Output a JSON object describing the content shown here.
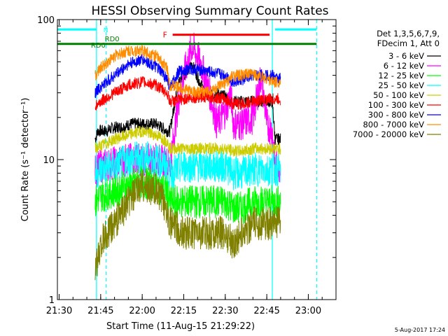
{
  "chart_data": {
    "type": "line",
    "title": "HESSI Observing Summary Count Rates",
    "xlabel": "Start Time (11-Aug-15 21:29:22)",
    "ylabel": "Count Rate (s⁻¹ detector⁻¹)",
    "y_scale": "log",
    "ylim": [
      1,
      100
    ],
    "xlim": [
      "21:29:22",
      "23:10:00"
    ],
    "x_tick_labels": [
      "21:30",
      "21:45",
      "22:00",
      "22:15",
      "22:30",
      "22:45",
      "23:00"
    ],
    "y_tick_labels": [
      "1",
      "10",
      "100"
    ],
    "legend_title": [
      "Det 1,3,5,6,7,9,",
      "FDecim 1, Att 0"
    ],
    "legend_position": "right",
    "footer_date": "5-Aug-2017 17:24",
    "series": [
      {
        "name": "3 - 6 keV",
        "color": "#000000",
        "x": [
          "21:43",
          "21:44",
          "21:47",
          "21:50",
          "21:53",
          "21:56",
          "22:00",
          "22:05",
          "22:09",
          "22:10",
          "22:13",
          "22:15",
          "22:18",
          "22:21",
          "22:24",
          "22:27",
          "22:30",
          "22:33",
          "22:36",
          "22:40",
          "22:45",
          "22:47",
          "22:48",
          "22:50"
        ],
        "values": [
          14,
          16,
          16,
          17,
          17,
          18,
          18,
          18,
          16,
          16,
          35,
          40,
          48,
          35,
          28,
          30,
          28,
          26,
          26,
          26,
          26,
          26,
          14,
          14
        ]
      },
      {
        "name": "6 - 12 keV",
        "color": "#ff00ff",
        "x": [
          "21:43",
          "21:45",
          "21:50",
          "21:55",
          "22:00",
          "22:05",
          "22:09",
          "22:10",
          "22:13",
          "22:15",
          "22:18",
          "22:21",
          "22:24",
          "22:27",
          "22:30",
          "22:32",
          "22:33",
          "22:36",
          "22:40",
          "22:43",
          "22:45",
          "22:47",
          "22:48",
          "22:50"
        ],
        "values": [
          8.5,
          9,
          9.5,
          10,
          10,
          10,
          9.5,
          9,
          25,
          40,
          65,
          50,
          32,
          18,
          22,
          30,
          18,
          18,
          20,
          40,
          18,
          16,
          9,
          9
        ]
      },
      {
        "name": "12 - 25 keV",
        "color": "#00ff00",
        "x": [
          "21:43",
          "21:45",
          "21:50",
          "21:55",
          "22:00",
          "22:05",
          "22:09",
          "22:10",
          "22:15",
          "22:20",
          "22:25",
          "22:30",
          "22:33",
          "22:36",
          "22:40",
          "22:45",
          "22:47",
          "22:48",
          "22:50"
        ],
        "values": [
          5,
          5.5,
          6,
          6.5,
          7,
          6.5,
          6,
          5,
          5,
          5,
          5,
          5,
          4.5,
          4.5,
          5,
          5,
          5,
          5,
          5
        ]
      },
      {
        "name": "25 - 50 keV",
        "color": "#00ffff",
        "x": [
          "21:43",
          "21:45",
          "21:50",
          "21:55",
          "22:00",
          "22:05",
          "22:09",
          "22:10",
          "22:15",
          "22:20",
          "22:25",
          "22:30",
          "22:33",
          "22:36",
          "22:40",
          "22:45",
          "22:47",
          "22:48",
          "22:50"
        ],
        "values": [
          8,
          8.5,
          9,
          10,
          10.5,
          10,
          9,
          8,
          9,
          9,
          9,
          9,
          8,
          8,
          8.5,
          8.5,
          8.5,
          8.5,
          8.5
        ]
      },
      {
        "name": "50 - 100 keV",
        "color": "#cccc00",
        "x": [
          "21:43",
          "21:45",
          "21:50",
          "21:55",
          "22:00",
          "22:05",
          "22:09",
          "22:10",
          "22:15",
          "22:20",
          "22:25",
          "22:30",
          "22:33",
          "22:36",
          "22:40",
          "22:45",
          "22:47",
          "22:48",
          "22:50"
        ],
        "values": [
          12,
          12.5,
          14,
          15,
          16,
          15,
          13.5,
          12,
          12,
          12,
          12,
          12,
          11.5,
          11.5,
          12,
          12,
          12,
          12,
          12
        ]
      },
      {
        "name": "100 - 300 keV",
        "color": "#ff0000",
        "x": [
          "21:43",
          "21:45",
          "21:50",
          "21:55",
          "22:00",
          "22:05",
          "22:09",
          "22:10",
          "22:15",
          "22:20",
          "22:25",
          "22:30",
          "22:33",
          "22:36",
          "22:40",
          "22:45",
          "22:47",
          "22:48",
          "22:50"
        ],
        "values": [
          24,
          26,
          30,
          34,
          36,
          34,
          30,
          26,
          27,
          28,
          28,
          27,
          25,
          25,
          26,
          27,
          27,
          27,
          27
        ]
      },
      {
        "name": "300 - 800 keV",
        "color": "#0000ff",
        "x": [
          "21:43",
          "21:45",
          "21:50",
          "21:55",
          "22:00",
          "22:05",
          "22:09",
          "22:10",
          "22:13",
          "22:16",
          "22:20",
          "22:25",
          "22:30",
          "22:33",
          "22:36",
          "22:40",
          "22:45",
          "22:47",
          "22:48",
          "22:50"
        ],
        "values": [
          30,
          33,
          40,
          48,
          52,
          46,
          38,
          32,
          42,
          44,
          44,
          42,
          40,
          36,
          37,
          40,
          40,
          40,
          38,
          38
        ]
      },
      {
        "name": "800 - 7000 keV",
        "color": "#ff8c00",
        "x": [
          "21:43",
          "21:45",
          "21:50",
          "21:55",
          "22:00",
          "22:05",
          "22:09",
          "22:10",
          "22:15",
          "22:20",
          "22:25",
          "22:30",
          "22:33",
          "22:36",
          "22:40",
          "22:45",
          "22:47",
          "22:48",
          "22:50"
        ],
        "values": [
          40,
          45,
          55,
          60,
          60,
          55,
          45,
          34,
          32,
          30,
          31,
          35,
          40,
          40,
          41,
          38,
          36,
          36,
          36
        ]
      },
      {
        "name": "7000 - 20000 keV",
        "color": "#808000",
        "x": [
          "21:43",
          "21:45",
          "21:50",
          "21:55",
          "22:00",
          "22:05",
          "22:09",
          "22:10",
          "22:15",
          "22:20",
          "22:25",
          "22:30",
          "22:33",
          "22:36",
          "22:40",
          "22:45",
          "22:47",
          "22:48",
          "22:50"
        ],
        "values": [
          1.5,
          2.5,
          3.5,
          5,
          6.5,
          6,
          4.5,
          3.5,
          3,
          3,
          3,
          3,
          2.5,
          3,
          3.5,
          3.5,
          3.5,
          3.5,
          3.5
        ]
      }
    ],
    "flags": [
      {
        "label": "N",
        "color": "#00ffff",
        "level": 85,
        "segments": [
          [
            "21:29:22",
            "21:43:30"
          ],
          [
            "22:48",
            "23:03"
          ]
        ]
      },
      {
        "label": "RD0",
        "color": "#008000",
        "level": 67,
        "segments": [
          [
            "21:29:22",
            "23:03"
          ]
        ]
      },
      {
        "label": "F",
        "color": "#ff0000",
        "level": 78,
        "segments": [
          [
            "22:11",
            "22:46"
          ]
        ]
      }
    ],
    "markers": [
      {
        "label": "RD0",
        "color": "#008000",
        "x": "21:44",
        "level": 63
      },
      {
        "label": "RD0",
        "color": "#008000",
        "x": "21:49",
        "level": 70
      }
    ],
    "vertical_lines": [
      {
        "x": "21:43:30",
        "style": "solid",
        "color": "#00ffff"
      },
      {
        "x": "21:47",
        "style": "dashed",
        "color": "#00ffff"
      },
      {
        "x": "22:47",
        "style": "solid",
        "color": "#00ffff"
      },
      {
        "x": "23:03",
        "style": "dashed",
        "color": "#00ffff"
      }
    ]
  }
}
